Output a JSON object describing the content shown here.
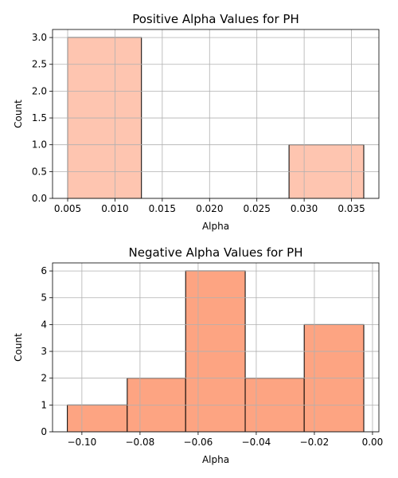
{
  "chart_data": [
    {
      "type": "bar",
      "title": "Positive Alpha Values for PH",
      "xlabel": "Alpha",
      "ylabel": "Count",
      "bins": [
        {
          "start": 0.005,
          "end": 0.0128,
          "count": 3
        },
        {
          "start": 0.0128,
          "end": 0.0206,
          "count": 0
        },
        {
          "start": 0.0206,
          "end": 0.0284,
          "count": 0
        },
        {
          "start": 0.0284,
          "end": 0.0363,
          "count": 1
        }
      ],
      "xlim": [
        0.0034,
        0.0379
      ],
      "ylim": [
        0,
        3.15
      ],
      "xticks": [
        0.005,
        0.01,
        0.015,
        0.02,
        0.025,
        0.03,
        0.035
      ],
      "xtick_labels": [
        "0.005",
        "0.010",
        "0.015",
        "0.020",
        "0.025",
        "0.030",
        "0.035"
      ],
      "yticks": [
        0,
        0.5,
        1.0,
        1.5,
        2.0,
        2.5,
        3.0
      ],
      "ytick_labels": [
        "0.0",
        "0.5",
        "1.0",
        "1.5",
        "2.0",
        "2.5",
        "3.0"
      ],
      "grid": true,
      "bar_color": "#fec5b0",
      "edge_color": "#000000"
    },
    {
      "type": "bar",
      "title": "Negative Alpha Values for PH",
      "xlabel": "Alpha",
      "ylabel": "Count",
      "bins": [
        {
          "start": -0.105,
          "end": -0.0844,
          "count": 1
        },
        {
          "start": -0.0844,
          "end": -0.0643,
          "count": 2
        },
        {
          "start": -0.0643,
          "end": -0.0438,
          "count": 6
        },
        {
          "start": -0.0438,
          "end": -0.0235,
          "count": 2
        },
        {
          "start": -0.0235,
          "end": -0.003,
          "count": 4
        }
      ],
      "xlim": [
        -0.1101,
        0.0022
      ],
      "ylim": [
        0,
        6.3
      ],
      "xticks": [
        -0.1,
        -0.08,
        -0.06,
        -0.04,
        -0.02,
        0.0
      ],
      "xtick_labels": [
        "−0.10",
        "−0.08",
        "−0.06",
        "−0.04",
        "−0.02",
        "0.00"
      ],
      "yticks": [
        0,
        1,
        2,
        3,
        4,
        5,
        6
      ],
      "ytick_labels": [
        "0",
        "1",
        "2",
        "3",
        "4",
        "5",
        "6"
      ],
      "grid": true,
      "bar_color": "#fda482",
      "edge_color": "#000000"
    }
  ]
}
